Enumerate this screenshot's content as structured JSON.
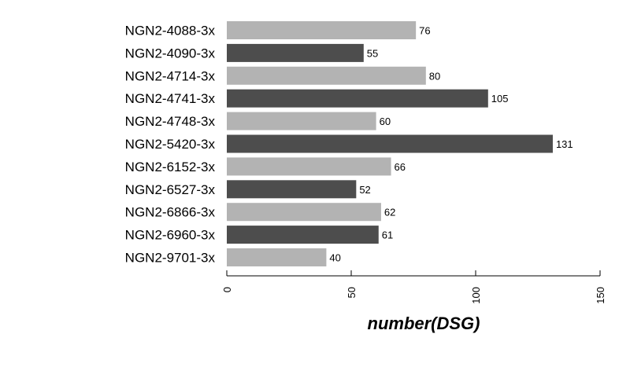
{
  "chart_data": {
    "type": "bar",
    "orientation": "horizontal",
    "categories": [
      "NGN2-4088-3x",
      "NGN2-4090-3x",
      "NGN2-4714-3x",
      "NGN2-4741-3x",
      "NGN2-4748-3x",
      "NGN2-5420-3x",
      "NGN2-6152-3x",
      "NGN2-6527-3x",
      "NGN2-6866-3x",
      "NGN2-6960-3x",
      "NGN2-9701-3x"
    ],
    "values": [
      76,
      55,
      80,
      105,
      60,
      131,
      66,
      52,
      62,
      61,
      40
    ],
    "bar_colors": [
      "#b3b3b3",
      "#4d4d4d",
      "#b3b3b3",
      "#4d4d4d",
      "#b3b3b3",
      "#4d4d4d",
      "#b3b3b3",
      "#4d4d4d",
      "#b3b3b3",
      "#4d4d4d",
      "#b3b3b3"
    ],
    "xlabel": "number(DSG)",
    "xlim": [
      0,
      150
    ],
    "xticks": [
      0,
      50,
      100,
      150
    ],
    "grid": false,
    "data_labels": true
  }
}
